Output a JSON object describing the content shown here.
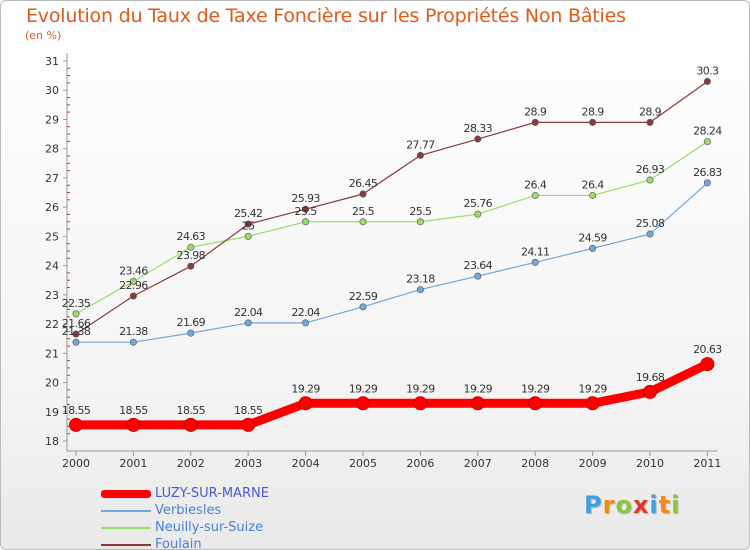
{
  "title": "Evolution du Taux de Taxe Foncière sur les Propriétés Non Bâties",
  "unit": "(en %)",
  "chart_data": {
    "type": "line",
    "title": "Evolution du Taux de Taxe Foncière sur les Propriétés Non Bâties",
    "ylabel": "(en %)",
    "xlabel": "",
    "ylim": [
      18,
      31
    ],
    "yticks": [
      18,
      19,
      20,
      21,
      22,
      23,
      24,
      25,
      26,
      27,
      28,
      29,
      30,
      31
    ],
    "categories": [
      "2000",
      "2001",
      "2002",
      "2003",
      "2004",
      "2005",
      "2006",
      "2007",
      "2008",
      "2009",
      "2010",
      "2011"
    ],
    "series": [
      {
        "name": "LUZY-SUR-MARNE",
        "color": "#ff0000",
        "values": [
          18.55,
          18.55,
          18.55,
          18.55,
          19.29,
          19.29,
          19.29,
          19.29,
          19.29,
          19.29,
          19.68,
          20.63
        ],
        "labels": [
          "18.55",
          "18.55",
          "18.55",
          "18.55",
          "19.29",
          "19.29",
          "19.29",
          "19.29",
          "19.29",
          "19.29",
          "19.68",
          "20.63"
        ]
      },
      {
        "name": "Verbiesles",
        "color": "#6fa8dc",
        "values": [
          21.38,
          21.38,
          21.69,
          22.04,
          22.04,
          22.59,
          23.18,
          23.64,
          24.11,
          24.59,
          25.08,
          26.83
        ],
        "labels": [
          "21.38",
          "21.38",
          "21.69",
          "22.04",
          "22.04",
          "22.59",
          "23.18",
          "23.64",
          "24.11",
          "24.59",
          "25.08",
          "26.83"
        ]
      },
      {
        "name": "Neuilly-sur-Suize",
        "color": "#99dd66",
        "values": [
          22.35,
          23.46,
          24.63,
          25,
          25.5,
          25.5,
          25.5,
          25.76,
          26.4,
          26.4,
          26.93,
          28.24
        ],
        "labels": [
          "22.35",
          "23.46",
          "24.63",
          "25",
          "25.5",
          "25.5",
          "25.5",
          "25.76",
          "26.4",
          "26.4",
          "26.93",
          "28.24"
        ]
      },
      {
        "name": "Foulain",
        "color": "#8b3a3a",
        "values": [
          21.66,
          22.96,
          23.98,
          25.42,
          25.93,
          26.45,
          27.77,
          28.33,
          28.9,
          28.9,
          28.9,
          30.3
        ],
        "labels": [
          "21.66",
          "22.96",
          "23.98",
          "25.42",
          "25.93",
          "26.45",
          "27.77",
          "28.33",
          "28.9",
          "28.9",
          "28.9",
          "30.3"
        ]
      }
    ],
    "grid": false,
    "legend": "bottom-left"
  },
  "logo": {
    "letters": [
      "P",
      "r",
      "o",
      "x",
      "i",
      "t",
      "i"
    ],
    "colors": [
      "#3da0e0",
      "#f08a1c",
      "#8cc63f",
      "#e8332a",
      "#3da0e0",
      "#f08a1c",
      "#8cc63f"
    ]
  }
}
